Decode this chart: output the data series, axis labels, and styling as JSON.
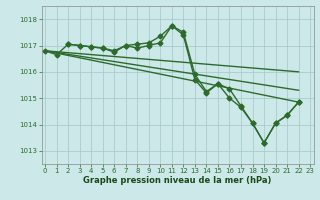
{
  "xlabel": "Graphe pression niveau de la mer (hPa)",
  "bg_color": "#cce8e8",
  "grid_color": "#aacccc",
  "line_color": "#2d6b2d",
  "marker": "D",
  "markersize": 2.5,
  "linewidth": 1.0,
  "ylim": [
    1012.5,
    1018.5
  ],
  "xlim": [
    -0.3,
    23.3
  ],
  "yticks": [
    1013,
    1014,
    1015,
    1016,
    1017,
    1018
  ],
  "xticks": [
    0,
    1,
    2,
    3,
    4,
    5,
    6,
    7,
    8,
    9,
    10,
    11,
    12,
    13,
    14,
    15,
    16,
    17,
    18,
    19,
    20,
    21,
    22,
    23
  ],
  "series_with_markers": [
    {
      "x": [
        0,
        1,
        2,
        3,
        4,
        5,
        6,
        7,
        8,
        9,
        10,
        11,
        12,
        13,
        14,
        15,
        16,
        17,
        18,
        19,
        20,
        21,
        22
      ],
      "y": [
        1016.8,
        1016.65,
        1017.05,
        1017.0,
        1016.95,
        1016.9,
        1016.8,
        1017.0,
        1017.05,
        1017.1,
        1017.35,
        1017.75,
        1017.4,
        1015.7,
        1015.2,
        1015.55,
        1015.35,
        1014.7,
        1014.05,
        1013.3,
        1014.05,
        1014.35,
        1014.85
      ]
    }
  ],
  "series_lines_only": [
    {
      "x": [
        0,
        22
      ],
      "y": [
        1016.8,
        1016.0
      ]
    },
    {
      "x": [
        0,
        22
      ],
      "y": [
        1016.8,
        1015.3
      ]
    },
    {
      "x": [
        0,
        22
      ],
      "y": [
        1016.8,
        1014.85
      ]
    }
  ],
  "series_partial_markers": [
    {
      "x": [
        2,
        3,
        4,
        5,
        6,
        7,
        8,
        9,
        10,
        11,
        12,
        13,
        14,
        15,
        16,
        17,
        18,
        19,
        20,
        21,
        22
      ],
      "y": [
        1017.05,
        1017.0,
        1016.95,
        1016.9,
        1016.75,
        1017.0,
        1016.9,
        1017.0,
        1017.1,
        1017.75,
        1017.5,
        1015.9,
        1015.25,
        1015.55,
        1015.0,
        1014.65,
        1014.05,
        1013.3,
        1014.05,
        1014.35,
        1014.85
      ]
    }
  ]
}
